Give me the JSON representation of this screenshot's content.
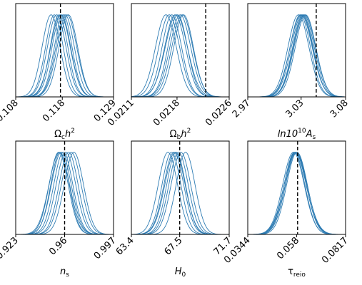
{
  "figure": {
    "line_color": "#2e7cb3",
    "reference_color": "#000000"
  },
  "chart_data": [
    {
      "type": "line",
      "param": "omega_cdm",
      "xlabel": {
        "base": "Ω",
        "sub": "c",
        "rest": "h",
        "sup": "2"
      },
      "xlim": [
        0.108,
        0.129
      ],
      "ticks": [
        "0.108",
        "0.118",
        "0.129"
      ],
      "tick_values": [
        0.108,
        0.118,
        0.129
      ],
      "reference": 0.1176,
      "curves": [
        {
          "mean": 0.1156,
          "sigma": 0.00195
        },
        {
          "mean": 0.1163,
          "sigma": 0.0019
        },
        {
          "mean": 0.1168,
          "sigma": 0.002
        },
        {
          "mean": 0.1173,
          "sigma": 0.0019
        },
        {
          "mean": 0.1178,
          "sigma": 0.002
        },
        {
          "mean": 0.1182,
          "sigma": 0.0019
        },
        {
          "mean": 0.1186,
          "sigma": 0.002
        },
        {
          "mean": 0.119,
          "sigma": 0.0021
        },
        {
          "mean": 0.1193,
          "sigma": 0.002
        },
        {
          "mean": 0.1176,
          "sigma": 0.0021
        }
      ]
    },
    {
      "type": "line",
      "param": "omega_b",
      "xlabel": {
        "base": "Ω",
        "sub": "b",
        "rest": "h",
        "sup": "2"
      },
      "xlim": [
        0.0211,
        0.0226
      ],
      "ticks": [
        "0.0211",
        "0.0218",
        "0.0226"
      ],
      "tick_values": [
        0.0211,
        0.0218,
        0.0226
      ],
      "reference": 0.02224,
      "curves": [
        {
          "mean": 0.02163,
          "sigma": 0.00016
        },
        {
          "mean": 0.02168,
          "sigma": 0.00016
        },
        {
          "mean": 0.02172,
          "sigma": 0.00015
        },
        {
          "mean": 0.02177,
          "sigma": 0.00016
        },
        {
          "mean": 0.02181,
          "sigma": 0.00015
        },
        {
          "mean": 0.02185,
          "sigma": 0.00016
        },
        {
          "mean": 0.02188,
          "sigma": 0.00016
        },
        {
          "mean": 0.0219,
          "sigma": 0.00015
        },
        {
          "mean": 0.02179,
          "sigma": 0.00017
        }
      ]
    },
    {
      "type": "line",
      "param": "ln10As",
      "xlabel": {
        "base": "ln10",
        "sup": "10",
        "rest": "A",
        "sub": "s",
        "italic": true
      },
      "xlim": [
        2.97,
        3.08
      ],
      "ticks": [
        "2.97",
        "3.03",
        "3.08"
      ],
      "tick_values": [
        2.97,
        3.03,
        3.08
      ],
      "reference": 3.047,
      "curves": [
        {
          "mean": 3.027,
          "sigma": 0.0118
        },
        {
          "mean": 3.029,
          "sigma": 0.0115
        },
        {
          "mean": 3.031,
          "sigma": 0.012
        },
        {
          "mean": 3.032,
          "sigma": 0.0115
        },
        {
          "mean": 3.033,
          "sigma": 0.0118
        },
        {
          "mean": 3.034,
          "sigma": 0.012
        },
        {
          "mean": 3.035,
          "sigma": 0.0116
        },
        {
          "mean": 3.03,
          "sigma": 0.0124
        }
      ]
    },
    {
      "type": "line",
      "param": "n_s",
      "xlabel": {
        "base": "n",
        "sub": "s"
      },
      "xlim": [
        0.923,
        0.997
      ],
      "ticks": [
        "0.923",
        "0.96",
        "0.997"
      ],
      "tick_values": [
        0.923,
        0.96,
        0.997
      ],
      "reference": 0.96,
      "curves": [
        {
          "mean": 0.9555,
          "sigma": 0.0072
        },
        {
          "mean": 0.9565,
          "sigma": 0.007
        },
        {
          "mean": 0.9575,
          "sigma": 0.0075
        },
        {
          "mean": 0.959,
          "sigma": 0.0072
        },
        {
          "mean": 0.961,
          "sigma": 0.0074
        },
        {
          "mean": 0.963,
          "sigma": 0.0072
        },
        {
          "mean": 0.965,
          "sigma": 0.0075
        },
        {
          "mean": 0.967,
          "sigma": 0.0073
        },
        {
          "mean": 0.956,
          "sigma": 0.0078
        }
      ]
    },
    {
      "type": "line",
      "param": "H0",
      "xlabel": {
        "base": "H",
        "sub": "0",
        "italic": true
      },
      "xlim": [
        63.4,
        71.7
      ],
      "ticks": [
        "63.4",
        "67.5",
        "71.7"
      ],
      "tick_values": [
        63.4,
        67.5,
        71.7
      ],
      "reference": 67.5,
      "curves": [
        {
          "mean": 66.5,
          "sigma": 0.82
        },
        {
          "mean": 66.8,
          "sigma": 0.8
        },
        {
          "mean": 67.0,
          "sigma": 0.84
        },
        {
          "mean": 67.2,
          "sigma": 0.8
        },
        {
          "mean": 67.4,
          "sigma": 0.82
        },
        {
          "mean": 67.6,
          "sigma": 0.83
        },
        {
          "mean": 68.0,
          "sigma": 0.8
        },
        {
          "mean": 67.1,
          "sigma": 0.86
        }
      ]
    },
    {
      "type": "line",
      "param": "tau_reio",
      "xlabel": {
        "base": "τ",
        "sub": "reio"
      },
      "xlim": [
        0.0344,
        0.0817
      ],
      "ticks": [
        "0.0344",
        "0.058",
        "0.0817"
      ],
      "tick_values": [
        0.0344,
        0.058,
        0.0817
      ],
      "reference": 0.0585,
      "curves": [
        {
          "mean": 0.0565,
          "sigma": 0.0052
        },
        {
          "mean": 0.057,
          "sigma": 0.005
        },
        {
          "mean": 0.0573,
          "sigma": 0.0053
        },
        {
          "mean": 0.0576,
          "sigma": 0.0051
        },
        {
          "mean": 0.0579,
          "sigma": 0.0052
        },
        {
          "mean": 0.0582,
          "sigma": 0.005
        },
        {
          "mean": 0.0575,
          "sigma": 0.0055
        }
      ]
    }
  ]
}
